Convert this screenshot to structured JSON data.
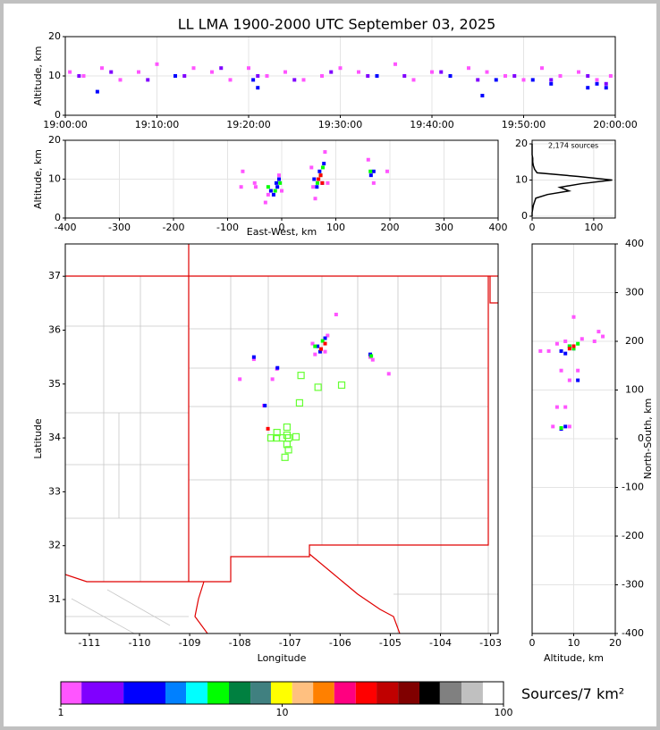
{
  "chart_data": [
    {
      "type": "scatter",
      "title": "LL LMA 1900-2000 UTC September 03, 2025",
      "ylabel": "Altitude, km",
      "xlim": [
        0,
        60
      ],
      "xticks": [
        {
          "value": 0,
          "label": "19:00:00"
        },
        {
          "value": 10,
          "label": "19:10:00"
        },
        {
          "value": 20,
          "label": "19:20:00"
        },
        {
          "value": 30,
          "label": "19:30:00"
        },
        {
          "value": 40,
          "label": "19:40:00"
        },
        {
          "value": 50,
          "label": "19:50:00"
        },
        {
          "value": 60,
          "label": "20:00:00"
        }
      ],
      "ylim": [
        0,
        20
      ],
      "yticks": [
        0,
        10,
        20
      ],
      "grid": true,
      "series": [
        {
          "color": "#ff55ff",
          "x": [
            0.5,
            2,
            4,
            6,
            8,
            10,
            12,
            14,
            16,
            18,
            20,
            22,
            24,
            26,
            28,
            30,
            32,
            34,
            36,
            38,
            40,
            42,
            44,
            46,
            48,
            50,
            52,
            54,
            56,
            58,
            59.5
          ],
          "values": [
            11,
            10,
            12,
            9,
            11,
            13,
            10,
            12,
            11,
            9,
            12,
            10,
            11,
            9,
            10,
            12,
            11,
            10,
            13,
            9,
            11,
            10,
            12,
            11,
            10,
            9,
            12,
            10,
            11,
            9,
            10
          ]
        },
        {
          "color": "#8000ff",
          "x": [
            1.5,
            5,
            9,
            13,
            17,
            21,
            25,
            29,
            33,
            37,
            41,
            45,
            49,
            53,
            57,
            59
          ],
          "values": [
            10,
            11,
            9,
            10,
            12,
            10,
            9,
            11,
            10,
            10,
            11,
            9,
            10,
            9,
            10,
            8
          ]
        },
        {
          "color": "#0000ff",
          "x": [
            3.5,
            12,
            20.5,
            21,
            34,
            42,
            45.5,
            47,
            51,
            53,
            57,
            58,
            59
          ],
          "values": [
            6,
            10,
            9,
            7,
            10,
            10,
            5,
            9,
            9,
            8,
            7,
            8,
            7
          ]
        }
      ]
    },
    {
      "type": "scatter",
      "xlabel": "East-West, km",
      "ylabel": "Altitude, km",
      "xlim": [
        -400,
        400
      ],
      "xticks": [
        -400,
        -300,
        -200,
        -100,
        0,
        100,
        200,
        300,
        400
      ],
      "ylim": [
        0,
        20
      ],
      "yticks": [
        0,
        10,
        20
      ],
      "grid": true,
      "series": [
        {
          "color": "#ff55ff",
          "x": [
            -75,
            -72,
            -50,
            -48,
            -25,
            -5,
            0,
            55,
            58,
            62,
            80,
            85,
            160,
            170,
            195,
            -30
          ],
          "values": [
            8,
            12,
            9,
            8,
            6,
            11,
            7,
            13,
            8,
            5,
            17,
            9,
            15,
            9,
            12,
            4
          ]
        },
        {
          "color": "#0000ff",
          "x": [
            -20,
            -15,
            -10,
            -5,
            60,
            65,
            70,
            75,
            78,
            165,
            170,
            -8
          ],
          "values": [
            7,
            6,
            9,
            10,
            10,
            8,
            12,
            9,
            14,
            11,
            12,
            8
          ]
        },
        {
          "color": "#00ff00",
          "x": [
            -25,
            -12,
            -3,
            66,
            72,
            76,
            164
          ],
          "values": [
            8,
            7,
            9,
            9,
            11,
            13,
            12
          ]
        },
        {
          "color": "#ff0000",
          "x": [
            68,
            72,
            75
          ],
          "values": [
            10,
            11,
            9
          ]
        }
      ]
    },
    {
      "type": "line",
      "annotation": "2,174 sources",
      "xlim": [
        0,
        135
      ],
      "xticks": [
        0,
        100
      ],
      "ylim": [
        -0.5,
        21
      ],
      "yticks": [
        0,
        10,
        20
      ],
      "grid": true,
      "series": [
        {
          "color": "#000000",
          "x": [
            0,
            0,
            1,
            2,
            4,
            6,
            25,
            60,
            45,
            80,
            130,
            75,
            8,
            4,
            2,
            1,
            1,
            0,
            0,
            0,
            0
          ],
          "values": [
            0,
            1,
            2,
            3,
            4,
            5,
            6,
            7,
            8,
            9,
            10,
            11,
            12,
            13,
            14,
            15,
            16,
            17,
            18,
            19,
            20
          ]
        }
      ]
    },
    {
      "type": "map",
      "xlabel": "Longitude",
      "ylabel": "Latitude",
      "xlim": [
        -111.48,
        -102.85
      ],
      "xticks": [
        -111,
        -110,
        -109,
        -108,
        -107,
        -106,
        -105,
        -104,
        -103
      ],
      "ylim": [
        30.37,
        37.6
      ],
      "yticks": [
        31,
        32,
        33,
        34,
        35,
        36,
        37
      ],
      "grid": false,
      "series": [
        {
          "color": "#ff55ff",
          "x": [
            -106.55,
            -106.25,
            -106.5,
            -106.3,
            -105.4,
            -105.35,
            -107.26,
            -107.52,
            -107.72,
            -108.0,
            -105.03,
            -106.08,
            -107.35
          ],
          "values": [
            35.75,
            35.9,
            35.55,
            35.6,
            35.5,
            35.45,
            35.28,
            34.6,
            35.46,
            35.09,
            35.19,
            36.29,
            35.09
          ]
        },
        {
          "color": "#0000ff",
          "x": [
            -106.45,
            -106.3,
            -105.4,
            -107.25,
            -107.5,
            -107.72,
            -106.4
          ],
          "values": [
            35.7,
            35.85,
            35.55,
            35.3,
            34.6,
            35.5,
            35.6
          ]
        },
        {
          "color": "#00ff00",
          "x": [
            -106.35,
            -105.38,
            -106.5
          ],
          "values": [
            35.8,
            35.52,
            35.7
          ]
        },
        {
          "color": "#ff0000",
          "x": [
            -106.38,
            -106.3,
            -107.44
          ],
          "values": [
            35.65,
            35.75,
            34.17
          ]
        }
      ],
      "stations": {
        "color": "#66ff33",
        "x": [
          -106.78,
          -106.44,
          -105.97,
          -106.81,
          -107.06,
          -107.06,
          -107.26,
          -107.38,
          -107.27,
          -107.15,
          -107.03,
          -106.88,
          -107.06,
          -107.03,
          -107.1
        ],
        "values": [
          35.16,
          34.94,
          34.98,
          34.65,
          34.2,
          34.05,
          34.1,
          34.0,
          34.0,
          34.0,
          34.0,
          34.02,
          33.88,
          33.78,
          33.64
        ]
      }
    },
    {
      "type": "scatter",
      "xlabel": "Altitude, km",
      "ylabel": "North-South, km",
      "xlim": [
        0,
        20
      ],
      "xticks": [
        0,
        10,
        20
      ],
      "ylim": [
        -400,
        400
      ],
      "yticks": [
        -400,
        -300,
        -200,
        -100,
        0,
        100,
        200,
        300,
        400
      ],
      "grid": true,
      "series": [
        {
          "color": "#ff55ff",
          "x": [
            4,
            6,
            8,
            12,
            15,
            17,
            7,
            9,
            11,
            6,
            8,
            2,
            5,
            9,
            10,
            16
          ],
          "values": [
            180,
            195,
            200,
            205,
            200,
            210,
            140,
            120,
            140,
            65,
            65,
            180,
            25,
            25,
            250,
            220
          ]
        },
        {
          "color": "#0000ff",
          "x": [
            7,
            8,
            9,
            10,
            11,
            7,
            8
          ],
          "values": [
            180,
            175,
            190,
            185,
            120,
            20,
            25
          ]
        },
        {
          "color": "#00ff00",
          "x": [
            9,
            10,
            11,
            7
          ],
          "values": [
            190,
            185,
            195,
            22
          ]
        },
        {
          "color": "#ff0000",
          "x": [
            9,
            10
          ],
          "values": [
            185,
            190
          ]
        }
      ]
    },
    {
      "type": "colorbar",
      "label": "Sources/7 km²",
      "log": true,
      "xlim": [
        1,
        100
      ],
      "xticks": [
        1,
        10,
        100
      ],
      "bounds": [
        1,
        1.24,
        1.92,
        2.97,
        3.68,
        4.6,
        5.75,
        7.19,
        8.9,
        11.1,
        13.8,
        17.2,
        21.5,
        26.7,
        33.4,
        41.7,
        51.6,
        64.6,
        80.7,
        100
      ],
      "colors": [
        "#ff55ff",
        "#8000ff",
        "#0000ff",
        "#0080ff",
        "#00ffff",
        "#00ff00",
        "#008040",
        "#408080",
        "#ffff00",
        "#ffc080",
        "#ff8000",
        "#ff0080",
        "#ff0000",
        "#c00000",
        "#800000",
        "#000000",
        "#808080",
        "#c0c0c0",
        "#ffffff"
      ]
    }
  ]
}
